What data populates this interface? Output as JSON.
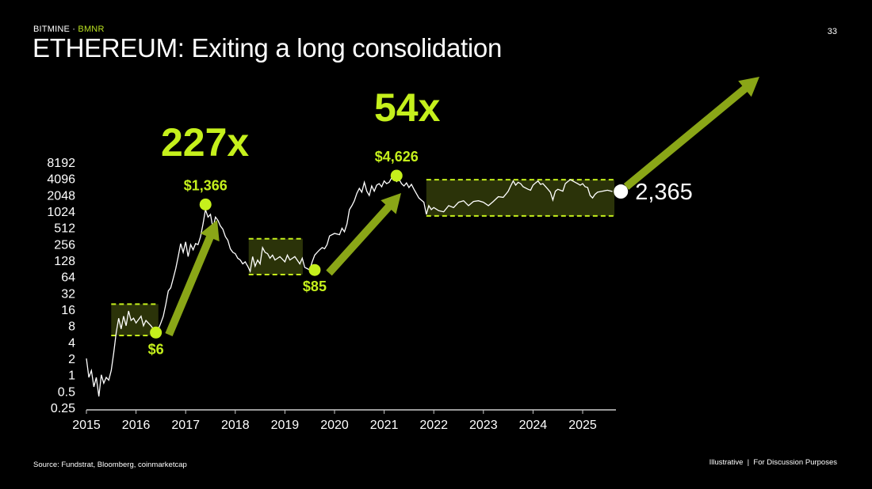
{
  "header": {
    "brand": "BITMINE",
    "separator": " · ",
    "ticker": "BMNR",
    "title": "ETHEREUM: Exiting a long consolidation",
    "page_number": "33"
  },
  "footer": {
    "source": "Source: Fundstrat, Bloomberg, coinmarketcap",
    "disclaimer": "Illustrative  |  For Discussion Purposes"
  },
  "colors": {
    "background": "#000000",
    "accent": "#c5f01c",
    "arrow": "#8aa617",
    "box_fill": "#2b3309",
    "line": "#ffffff"
  },
  "chart_data": {
    "type": "line",
    "title": "",
    "xlabel": "",
    "ylabel": "",
    "y_scale": "log2",
    "ylim": [
      0.25,
      8192
    ],
    "xlim": [
      2015,
      2025.7
    ],
    "y_ticks": [
      "8192",
      "4096",
      "2048",
      "1024",
      "512",
      "256",
      "128",
      "64",
      "32",
      "16",
      "8",
      "4",
      "2",
      "1",
      "0.5",
      "0.25"
    ],
    "y_tick_values": [
      8192,
      4096,
      2048,
      1024,
      512,
      256,
      128,
      64,
      32,
      16,
      8,
      4,
      2,
      1,
      0.5,
      0.25
    ],
    "x_ticks": [
      "2015",
      "2016",
      "2017",
      "2018",
      "2019",
      "2020",
      "2021",
      "2022",
      "2023",
      "2024",
      "2025"
    ],
    "grid": false,
    "series": [
      {
        "points": [
          [
            2015.0,
            2
          ],
          [
            2015.05,
            0.9
          ],
          [
            2015.1,
            1.2
          ],
          [
            2015.15,
            0.6
          ],
          [
            2015.2,
            0.9
          ],
          [
            2015.25,
            0.4
          ],
          [
            2015.3,
            1.0
          ],
          [
            2015.35,
            0.7
          ],
          [
            2015.4,
            0.9
          ],
          [
            2015.45,
            0.8
          ],
          [
            2015.5,
            1.2
          ],
          [
            2015.55,
            2.5
          ],
          [
            2015.6,
            6
          ],
          [
            2015.65,
            11
          ],
          [
            2015.7,
            7
          ],
          [
            2015.75,
            12
          ],
          [
            2015.8,
            8
          ],
          [
            2015.85,
            15
          ],
          [
            2015.9,
            10
          ],
          [
            2015.95,
            11
          ],
          [
            2016.0,
            9
          ],
          [
            2016.1,
            12
          ],
          [
            2016.15,
            8
          ],
          [
            2016.2,
            10
          ],
          [
            2016.3,
            8
          ],
          [
            2016.35,
            7
          ],
          [
            2016.4,
            6
          ],
          [
            2016.45,
            7
          ],
          [
            2016.5,
            9
          ],
          [
            2016.55,
            12
          ],
          [
            2016.6,
            20
          ],
          [
            2016.65,
            35
          ],
          [
            2016.7,
            40
          ],
          [
            2016.75,
            60
          ],
          [
            2016.8,
            90
          ],
          [
            2016.85,
            150
          ],
          [
            2016.9,
            260
          ],
          [
            2016.95,
            180
          ],
          [
            2017.0,
            280
          ],
          [
            2017.05,
            150
          ],
          [
            2017.1,
            250
          ],
          [
            2017.15,
            200
          ],
          [
            2017.2,
            260
          ],
          [
            2017.25,
            250
          ],
          [
            2017.3,
            350
          ],
          [
            2017.35,
            600
          ],
          [
            2017.4,
            1100
          ],
          [
            2017.45,
            800
          ],
          [
            2017.5,
            900
          ],
          [
            2017.55,
            500
          ],
          [
            2017.6,
            800
          ],
          [
            2017.65,
            700
          ],
          [
            2017.7,
            550
          ],
          [
            2017.75,
            480
          ],
          [
            2017.8,
            350
          ],
          [
            2017.85,
            300
          ],
          [
            2017.9,
            210
          ],
          [
            2017.95,
            180
          ],
          [
            2018.0,
            170
          ],
          [
            2018.05,
            140
          ],
          [
            2018.1,
            130
          ],
          [
            2018.15,
            110
          ],
          [
            2018.2,
            120
          ],
          [
            2018.25,
            100
          ],
          [
            2018.3,
            80
          ],
          [
            2018.35,
            150
          ],
          [
            2018.4,
            100
          ],
          [
            2018.45,
            130
          ],
          [
            2018.5,
            110
          ],
          [
            2018.55,
            220
          ],
          [
            2018.6,
            180
          ],
          [
            2018.65,
            170
          ],
          [
            2018.7,
            140
          ],
          [
            2018.75,
            160
          ],
          [
            2018.8,
            130
          ],
          [
            2018.9,
            150
          ],
          [
            2019.0,
            120
          ],
          [
            2019.05,
            160
          ],
          [
            2019.1,
            130
          ],
          [
            2019.2,
            150
          ],
          [
            2019.3,
            110
          ],
          [
            2019.35,
            140
          ],
          [
            2019.4,
            95
          ],
          [
            2019.45,
            90
          ],
          [
            2019.5,
            85
          ],
          [
            2019.55,
            120
          ],
          [
            2019.6,
            160
          ],
          [
            2019.65,
            180
          ],
          [
            2019.7,
            200
          ],
          [
            2019.75,
            220
          ],
          [
            2019.8,
            210
          ],
          [
            2019.85,
            250
          ],
          [
            2019.9,
            360
          ],
          [
            2020.0,
            400
          ],
          [
            2020.1,
            380
          ],
          [
            2020.15,
            500
          ],
          [
            2020.2,
            430
          ],
          [
            2020.25,
            600
          ],
          [
            2020.3,
            1100
          ],
          [
            2020.35,
            1300
          ],
          [
            2020.4,
            1600
          ],
          [
            2020.45,
            2200
          ],
          [
            2020.5,
            2700
          ],
          [
            2020.55,
            2300
          ],
          [
            2020.6,
            3500
          ],
          [
            2020.65,
            2400
          ],
          [
            2020.7,
            2000
          ],
          [
            2020.75,
            3000
          ],
          [
            2020.8,
            2400
          ],
          [
            2020.85,
            3100
          ],
          [
            2020.9,
            3300
          ],
          [
            2020.95,
            2900
          ],
          [
            2021.0,
            3700
          ],
          [
            2021.05,
            3300
          ],
          [
            2021.1,
            3500
          ],
          [
            2021.15,
            4200
          ],
          [
            2021.2,
            4300
          ],
          [
            2021.25,
            3600
          ],
          [
            2021.3,
            4000
          ],
          [
            2021.35,
            3300
          ],
          [
            2021.4,
            3000
          ],
          [
            2021.45,
            3400
          ],
          [
            2021.5,
            2800
          ],
          [
            2021.55,
            3200
          ],
          [
            2021.6,
            2600
          ],
          [
            2021.7,
            1800
          ],
          [
            2021.8,
            1500
          ],
          [
            2021.85,
            900
          ],
          [
            2021.9,
            1300
          ],
          [
            2021.95,
            1100
          ],
          [
            2022.0,
            1200
          ],
          [
            2022.1,
            1050
          ],
          [
            2022.2,
            1000
          ],
          [
            2022.3,
            1300
          ],
          [
            2022.4,
            1200
          ],
          [
            2022.5,
            1500
          ],
          [
            2022.6,
            1600
          ],
          [
            2022.7,
            1300
          ],
          [
            2022.8,
            1550
          ],
          [
            2022.9,
            1600
          ],
          [
            2023.0,
            1500
          ],
          [
            2023.1,
            1300
          ],
          [
            2023.2,
            1550
          ],
          [
            2023.3,
            1900
          ],
          [
            2023.4,
            1850
          ],
          [
            2023.45,
            2100
          ],
          [
            2023.5,
            2400
          ],
          [
            2023.55,
            3000
          ],
          [
            2023.6,
            3700
          ],
          [
            2023.65,
            3100
          ],
          [
            2023.7,
            3500
          ],
          [
            2023.75,
            3300
          ],
          [
            2023.8,
            2900
          ],
          [
            2023.9,
            2600
          ],
          [
            2023.95,
            2500
          ],
          [
            2024.0,
            3100
          ],
          [
            2024.05,
            3400
          ],
          [
            2024.1,
            3700
          ],
          [
            2024.15,
            3200
          ],
          [
            2024.2,
            3300
          ],
          [
            2024.3,
            2600
          ],
          [
            2024.35,
            2300
          ],
          [
            2024.4,
            1650
          ],
          [
            2024.45,
            2400
          ],
          [
            2024.5,
            2600
          ],
          [
            2024.6,
            2400
          ],
          [
            2024.65,
            3300
          ],
          [
            2024.7,
            3600
          ],
          [
            2024.75,
            3900
          ],
          [
            2024.8,
            3700
          ],
          [
            2024.85,
            3500
          ],
          [
            2024.9,
            3300
          ],
          [
            2024.95,
            3100
          ],
          [
            2025.0,
            3300
          ],
          [
            2025.05,
            2900
          ],
          [
            2025.1,
            2800
          ],
          [
            2025.15,
            2000
          ],
          [
            2025.2,
            1800
          ],
          [
            2025.25,
            2100
          ],
          [
            2025.3,
            2300
          ],
          [
            2025.4,
            2400
          ],
          [
            2025.5,
            2500
          ],
          [
            2025.6,
            2365
          ]
        ]
      }
    ],
    "consolidation_ranges": [
      {
        "x": [
          2015.5,
          2016.45
        ],
        "y": [
          20,
          5.3
        ]
      },
      {
        "x": [
          2018.27,
          2019.36
        ],
        "y": [
          320,
          70
        ]
      },
      {
        "x": [
          2021.85,
          2025.64
        ],
        "y": [
          3900,
          840
        ]
      }
    ],
    "annotations": [
      {
        "label": "$6",
        "x": 2016.4,
        "y": 6,
        "label_pos": "below"
      },
      {
        "label": "$1,366",
        "x": 2017.4,
        "y": 1366,
        "label_pos": "above"
      },
      {
        "label": "$85",
        "x": 2019.6,
        "y": 85,
        "label_pos": "below"
      },
      {
        "label": "$4,626",
        "x": 2021.25,
        "y": 4626,
        "label_pos": "above"
      }
    ],
    "current": {
      "label": "2,365",
      "x": 2025.77,
      "y": 2365
    },
    "multiples": [
      {
        "label": "227x"
      },
      {
        "label": "54x"
      }
    ]
  }
}
